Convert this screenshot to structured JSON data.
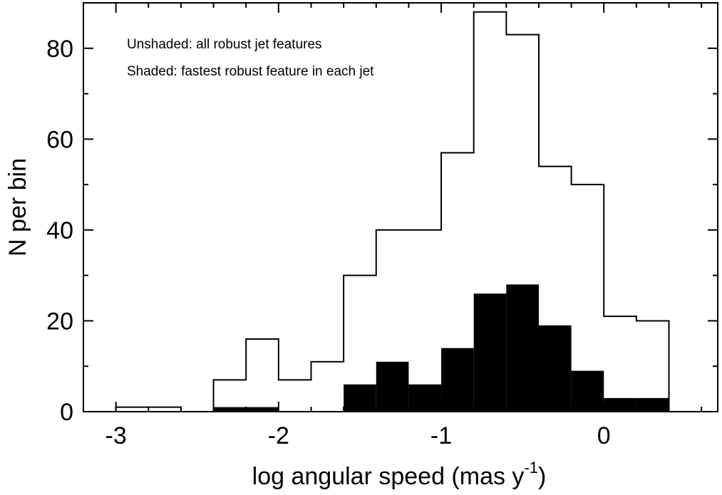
{
  "chart_data": {
    "type": "histogram",
    "xlabel": "log angular speed (mas y",
    "xlabel_superscript": "-1",
    "xlabel_suffix": ")",
    "ylabel": "N per bin",
    "xlim": [
      -3.2,
      0.7
    ],
    "ylim": [
      0,
      90
    ],
    "xticks": [
      -3,
      -2,
      -1,
      0
    ],
    "xtick_labels": [
      "-3",
      "-2",
      "-1",
      "0"
    ],
    "yticks": [
      0,
      20,
      40,
      60,
      80
    ],
    "ytick_labels": [
      "0",
      "20",
      "40",
      "60",
      "80"
    ],
    "annotations": [
      "Unshaded: all robust jet features",
      "Shaded: fastest robust feature in each jet"
    ],
    "bin_width": 0.2,
    "series": [
      {
        "name": "all robust jet features",
        "style": "unshaded",
        "bins": [
          {
            "x0": -3.0,
            "x1": -2.8,
            "value": 1
          },
          {
            "x0": -2.8,
            "x1": -2.6,
            "value": 1
          },
          {
            "x0": -2.6,
            "x1": -2.4,
            "value": 0
          },
          {
            "x0": -2.4,
            "x1": -2.2,
            "value": 7
          },
          {
            "x0": -2.2,
            "x1": -2.0,
            "value": 16
          },
          {
            "x0": -2.0,
            "x1": -1.8,
            "value": 7
          },
          {
            "x0": -1.8,
            "x1": -1.6,
            "value": 11
          },
          {
            "x0": -1.6,
            "x1": -1.4,
            "value": 30
          },
          {
            "x0": -1.4,
            "x1": -1.2,
            "value": 40
          },
          {
            "x0": -1.2,
            "x1": -1.0,
            "value": 40
          },
          {
            "x0": -1.0,
            "x1": -0.8,
            "value": 57
          },
          {
            "x0": -0.8,
            "x1": -0.6,
            "value": 88
          },
          {
            "x0": -0.6,
            "x1": -0.4,
            "value": 83
          },
          {
            "x0": -0.4,
            "x1": -0.2,
            "value": 54
          },
          {
            "x0": -0.2,
            "x1": 0.0,
            "value": 50
          },
          {
            "x0": 0.0,
            "x1": 0.2,
            "value": 21
          },
          {
            "x0": 0.2,
            "x1": 0.4,
            "value": 20
          }
        ]
      },
      {
        "name": "fastest robust feature in each jet",
        "style": "shaded",
        "color": "#000000",
        "bins": [
          {
            "x0": -2.4,
            "x1": -2.2,
            "value": 1
          },
          {
            "x0": -2.2,
            "x1": -2.0,
            "value": 1
          },
          {
            "x0": -1.6,
            "x1": -1.4,
            "value": 6
          },
          {
            "x0": -1.4,
            "x1": -1.2,
            "value": 11
          },
          {
            "x0": -1.2,
            "x1": -1.0,
            "value": 6
          },
          {
            "x0": -1.0,
            "x1": -0.8,
            "value": 14
          },
          {
            "x0": -0.8,
            "x1": -0.6,
            "value": 26
          },
          {
            "x0": -0.6,
            "x1": -0.4,
            "value": 28
          },
          {
            "x0": -0.4,
            "x1": -0.2,
            "value": 19
          },
          {
            "x0": -0.2,
            "x1": 0.0,
            "value": 9
          },
          {
            "x0": 0.0,
            "x1": 0.2,
            "value": 3
          },
          {
            "x0": 0.2,
            "x1": 0.4,
            "value": 3
          }
        ]
      }
    ],
    "minor_xtick_step": 0.2,
    "minor_ytick_step": 10,
    "grid": false
  }
}
